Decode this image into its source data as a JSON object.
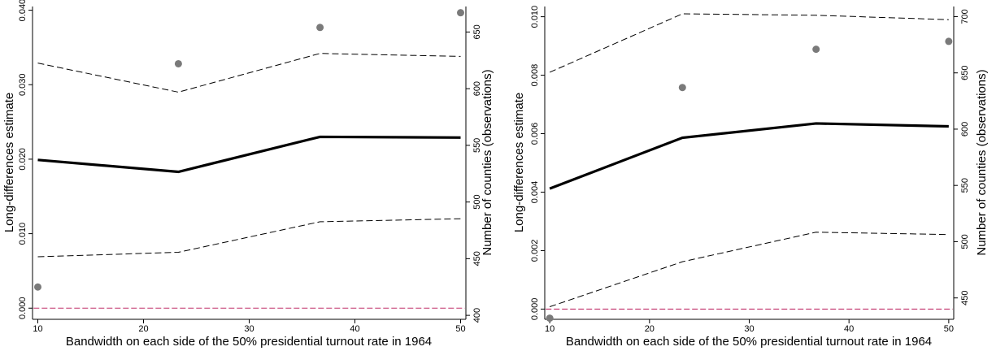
{
  "chart_data": [
    {
      "type": "line",
      "title": "",
      "xlabel": "Bandwidth on each side of the 50% presidential turnout rate in 1964",
      "ylabel": "Long-differences estimate",
      "y2label": "Number of counties (observations)",
      "xlim": [
        9.5,
        50.5
      ],
      "ylim": [
        -0.0015,
        0.0405
      ],
      "y2lim": [
        396.5,
        672.5
      ],
      "xticks": [
        10,
        20,
        30,
        40,
        50
      ],
      "xtick_labels": [
        "10",
        "20",
        "30",
        "40",
        "50"
      ],
      "yticks": [
        0,
        0.01,
        0.02,
        0.03,
        0.04
      ],
      "ytick_labels": [
        "0.000",
        "0.010",
        "0.020",
        "0.030",
        "0.040"
      ],
      "y2ticks": [
        400,
        450,
        500,
        550,
        600,
        650
      ],
      "y2tick_labels": [
        "400",
        "450",
        "500",
        "550",
        "600",
        "650"
      ],
      "grid": false,
      "series": [
        {
          "role": "estimate",
          "style": "solid",
          "axis": "left",
          "color": "#000000",
          "x": [
            10,
            23.3,
            36.7,
            50
          ],
          "y": [
            0.0199,
            0.0183,
            0.023,
            0.0229
          ]
        },
        {
          "role": "upper-ci",
          "style": "dashed",
          "axis": "left",
          "color": "#000000",
          "x": [
            10,
            23.3,
            36.7,
            50
          ],
          "y": [
            0.0329,
            0.029,
            0.0342,
            0.0338
          ]
        },
        {
          "role": "lower-ci",
          "style": "dashed",
          "axis": "left",
          "color": "#000000",
          "x": [
            10,
            23.3,
            36.7,
            50
          ],
          "y": [
            0.0069,
            0.0075,
            0.0116,
            0.012
          ]
        },
        {
          "role": "zero-line",
          "style": "dashed",
          "axis": "left",
          "color": "#c0306a",
          "x": [
            9.6,
            50.4
          ],
          "y": [
            0,
            0
          ]
        },
        {
          "role": "observations",
          "style": "scatter",
          "axis": "right",
          "color": "#7a7a7a",
          "x": [
            10,
            23.3,
            36.7,
            50
          ],
          "y": [
            425,
            622,
            654,
            667
          ]
        }
      ]
    },
    {
      "type": "line",
      "title": "",
      "xlabel": "Bandwidth on each side of the 50% presidential turnout rate in 1964",
      "ylabel": "Long-differences estimate",
      "y2label": "Number of counties (observations)",
      "xlim": [
        9.5,
        50.5
      ],
      "ylim": [
        -0.00035,
        0.01035
      ],
      "y2lim": [
        431,
        709
      ],
      "xticks": [
        10,
        20,
        30,
        40,
        50
      ],
      "xtick_labels": [
        "10",
        "20",
        "30",
        "40",
        "50"
      ],
      "yticks": [
        0,
        0.002,
        0.004,
        0.006,
        0.008,
        0.01
      ],
      "ytick_labels": [
        "0.000",
        "0.002",
        "0.004",
        "0.006",
        "0.008",
        "0.010"
      ],
      "y2ticks": [
        450,
        500,
        550,
        600,
        650,
        700
      ],
      "y2tick_labels": [
        "450",
        "500",
        "550",
        "600",
        "650",
        "700"
      ],
      "grid": false,
      "series": [
        {
          "role": "estimate",
          "style": "solid",
          "axis": "left",
          "color": "#000000",
          "x": [
            10,
            23.3,
            36.7,
            50
          ],
          "y": [
            0.00412,
            0.00586,
            0.00635,
            0.00625
          ]
        },
        {
          "role": "upper-ci",
          "style": "dashed",
          "axis": "left",
          "color": "#000000",
          "x": [
            10,
            23.3,
            36.7,
            50
          ],
          "y": [
            0.0081,
            0.0101,
            0.01005,
            0.0099
          ]
        },
        {
          "role": "lower-ci",
          "style": "dashed",
          "axis": "left",
          "color": "#000000",
          "x": [
            10,
            23.3,
            36.7,
            50
          ],
          "y": [
            8e-05,
            0.00162,
            0.00263,
            0.00255
          ]
        },
        {
          "role": "zero-line",
          "style": "dashed",
          "axis": "left",
          "color": "#c0306a",
          "x": [
            9.6,
            50.4
          ],
          "y": [
            0,
            0
          ]
        },
        {
          "role": "observations",
          "style": "scatter",
          "axis": "right",
          "color": "#7a7a7a",
          "x": [
            10,
            23.3,
            36.7,
            50
          ],
          "y": [
            432,
            637,
            671,
            678
          ]
        }
      ]
    }
  ]
}
